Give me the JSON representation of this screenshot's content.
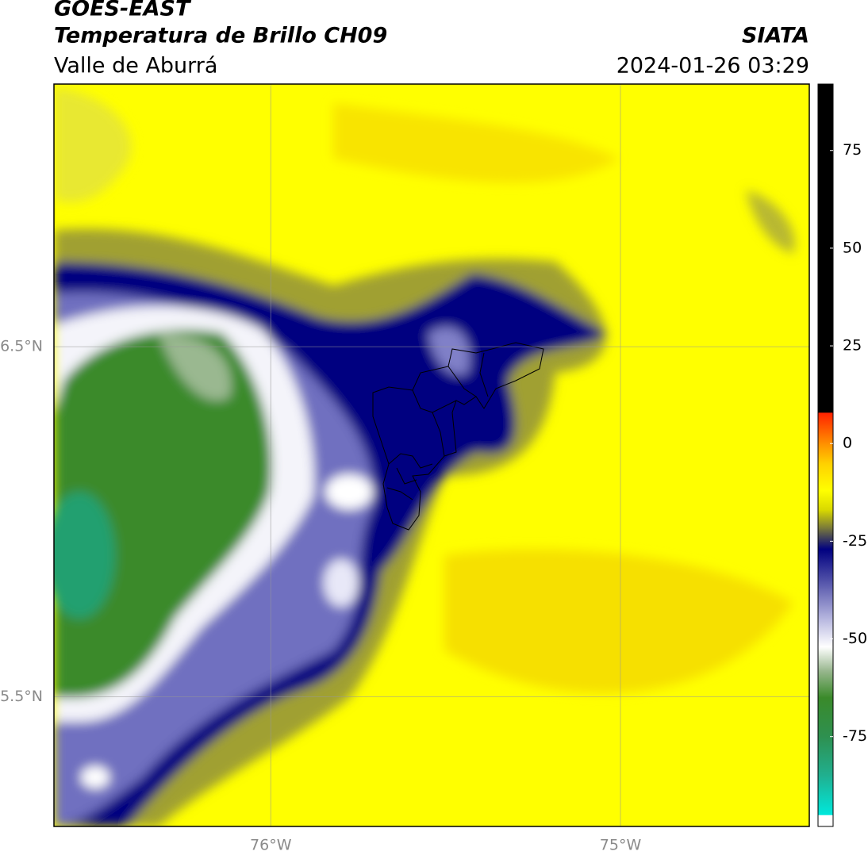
{
  "header": {
    "satellite": "GOES-EAST",
    "product": "Temperatura de Brillo CH09",
    "agency": "SIATA",
    "region": "Valle de Aburrá",
    "datetime": "2024-01-26 03:29"
  },
  "map": {
    "xlim": [
      -76.62,
      -74.46
    ],
    "ylim": [
      5.13,
      7.25
    ],
    "xticks": [
      {
        "value": -76,
        "label": "76°W"
      },
      {
        "value": -75,
        "label": "75°W"
      }
    ],
    "yticks": [
      {
        "value": 5.5,
        "label": "5.5°N"
      },
      {
        "value": 6.5,
        "label": "6.5°N"
      }
    ],
    "grid": true
  },
  "colorbar": {
    "range": [
      -98,
      92
    ],
    "ticks": [
      -75,
      -50,
      -25,
      0,
      25,
      50,
      75
    ],
    "stops": [
      {
        "value": -98,
        "color": "#ffffff"
      },
      {
        "value": -95,
        "color": "#ffffff"
      },
      {
        "value": -95,
        "color": "#00e8dc"
      },
      {
        "value": -85,
        "color": "#20b090"
      },
      {
        "value": -75,
        "color": "#2e9050"
      },
      {
        "value": -65,
        "color": "#3a8a2a"
      },
      {
        "value": -58,
        "color": "#9ab890"
      },
      {
        "value": -52,
        "color": "#ffffff"
      },
      {
        "value": -45,
        "color": "#b8b8e0"
      },
      {
        "value": -35,
        "color": "#5050a8"
      },
      {
        "value": -27,
        "color": "#000080"
      },
      {
        "value": -22,
        "color": "#707040"
      },
      {
        "value": -17,
        "color": "#d8d800"
      },
      {
        "value": -12,
        "color": "#ffff00"
      },
      {
        "value": -5,
        "color": "#ffd000"
      },
      {
        "value": 0,
        "color": "#ff9000"
      },
      {
        "value": 8,
        "color": "#ff2000"
      },
      {
        "value": 8,
        "color": "#000000"
      },
      {
        "value": 92,
        "color": "#000000"
      }
    ]
  }
}
